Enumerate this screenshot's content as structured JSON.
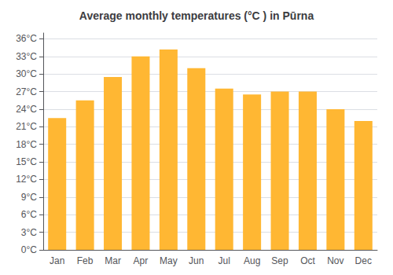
{
  "chart_data": {
    "type": "bar",
    "title": "Average monthly temperatures (°C ) in Pūrna",
    "categories": [
      "Jan",
      "Feb",
      "Mar",
      "Apr",
      "May",
      "Jun",
      "Jul",
      "Aug",
      "Sep",
      "Oct",
      "Nov",
      "Dec"
    ],
    "values": [
      22.5,
      25.5,
      29.5,
      33.0,
      34.2,
      31.0,
      27.5,
      26.5,
      27.0,
      27.0,
      24.0,
      22.0
    ],
    "color": "#FFB733",
    "ylim": [
      0,
      37
    ],
    "yticks": [
      {
        "value": 0,
        "label": "0°C"
      },
      {
        "value": 3,
        "label": "3°C"
      },
      {
        "value": 6,
        "label": "6°C"
      },
      {
        "value": 9,
        "label": "9°C"
      },
      {
        "value": 12,
        "label": "12°C"
      },
      {
        "value": 15,
        "label": "15°C"
      },
      {
        "value": 18,
        "label": "18°C"
      },
      {
        "value": 21,
        "label": "21°C"
      },
      {
        "value": 24,
        "label": "24°C"
      },
      {
        "value": 27,
        "label": "27°C"
      },
      {
        "value": 30,
        "label": "30°C"
      },
      {
        "value": 33,
        "label": "33°C"
      },
      {
        "value": 36,
        "label": "36°C"
      }
    ],
    "grid": true
  }
}
